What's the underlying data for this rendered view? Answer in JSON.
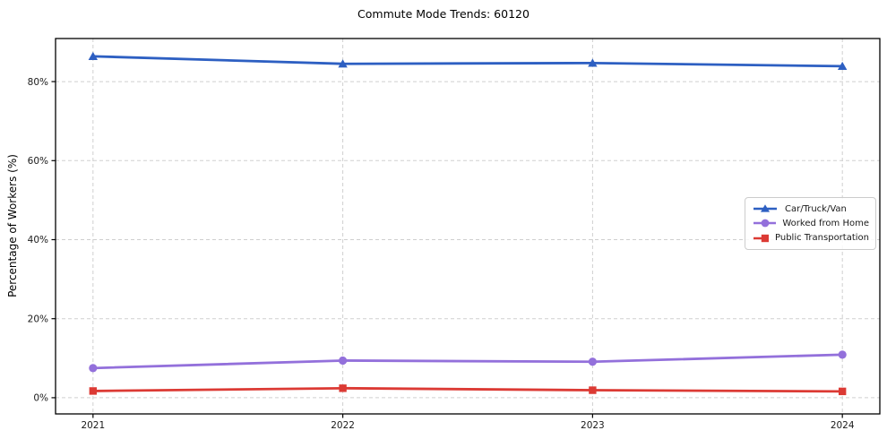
{
  "title": "Commute Mode Trends: 60120",
  "chart_data": {
    "type": "line",
    "title": "Commute Mode Trends: 60120",
    "xlabel": "",
    "ylabel": "Percentage of Workers (%)",
    "x": [
      2021,
      2022,
      2023,
      2024
    ],
    "x_tick_labels": [
      "2021",
      "2022",
      "2023",
      "2024"
    ],
    "y_ticks": [
      0,
      20,
      40,
      60,
      80
    ],
    "y_tick_labels": [
      "0%",
      "20%",
      "40%",
      "60%",
      "80%"
    ],
    "xlim": [
      2020.85,
      2024.15
    ],
    "ylim": [
      -4.1,
      90.9
    ],
    "grid": true,
    "grid_color": "#cfcfcf",
    "legend_position": "center right",
    "series": [
      {
        "name": "Car/Truck/Van",
        "color": "#2d5fc2",
        "marker": "triangle",
        "values": [
          86.4,
          84.5,
          84.7,
          83.9
        ]
      },
      {
        "name": "Worked from Home",
        "color": "#9370db",
        "marker": "circle",
        "values": [
          7.5,
          9.4,
          9.1,
          10.9
        ]
      },
      {
        "name": "Public Transportation",
        "color": "#dc3a34",
        "marker": "square",
        "values": [
          1.7,
          2.4,
          1.9,
          1.6
        ]
      }
    ]
  }
}
